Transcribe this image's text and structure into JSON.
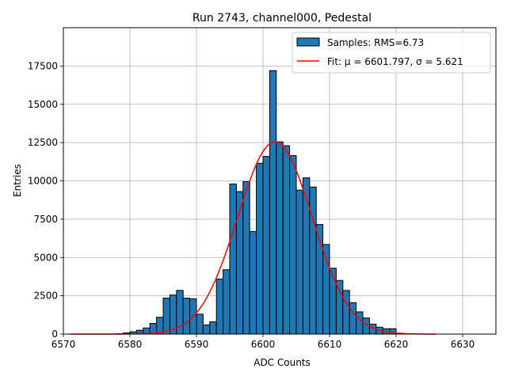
{
  "chart_data": {
    "type": "bar",
    "title": "Run 2743, channel000, Pedestal",
    "xlabel": "ADC Counts",
    "ylabel": "Entries",
    "xlim": [
      6570,
      6635
    ],
    "ylim": [
      0,
      20000
    ],
    "grid": true,
    "legend_placement": "top-right",
    "bin_width": 1,
    "xticks": [
      "6570",
      "6580",
      "6590",
      "6600",
      "6610",
      "6620",
      "6630"
    ],
    "yticks": [
      "0",
      "2500",
      "5000",
      "7500",
      "10000",
      "12500",
      "15000",
      "17500"
    ],
    "x": [
      6578,
      6579,
      6580,
      6581,
      6582,
      6583,
      6584,
      6585,
      6586,
      6587,
      6588,
      6589,
      6590,
      6591,
      6592,
      6593,
      6594,
      6595,
      6596,
      6597,
      6598,
      6599,
      6600,
      6601,
      6602,
      6603,
      6604,
      6605,
      6606,
      6607,
      6608,
      6609,
      6610,
      6611,
      6612,
      6613,
      6614,
      6615,
      6616,
      6617,
      6618,
      6619
    ],
    "series": [
      {
        "name": "Samples: RMS=6.73",
        "kind": "histogram",
        "color": "#1f77b4",
        "edgecolor": "#000000",
        "values": [
          20,
          80,
          150,
          250,
          400,
          700,
          1100,
          2350,
          2550,
          2850,
          2350,
          2300,
          1300,
          600,
          800,
          3600,
          4200,
          9800,
          9300,
          9950,
          6700,
          11150,
          11600,
          17200,
          12550,
          12300,
          11650,
          9400,
          10200,
          9600,
          7150,
          5850,
          4300,
          3500,
          2850,
          2050,
          1450,
          1050,
          650,
          450,
          350,
          350
        ]
      },
      {
        "name": "Fit: μ = 6601.797, σ = 5.621",
        "kind": "gaussian_fit",
        "color": "#ff0000",
        "mu": 6601.797,
        "sigma": 5.621,
        "amplitude": 12550,
        "range": [
          6571,
          6626
        ]
      }
    ]
  }
}
